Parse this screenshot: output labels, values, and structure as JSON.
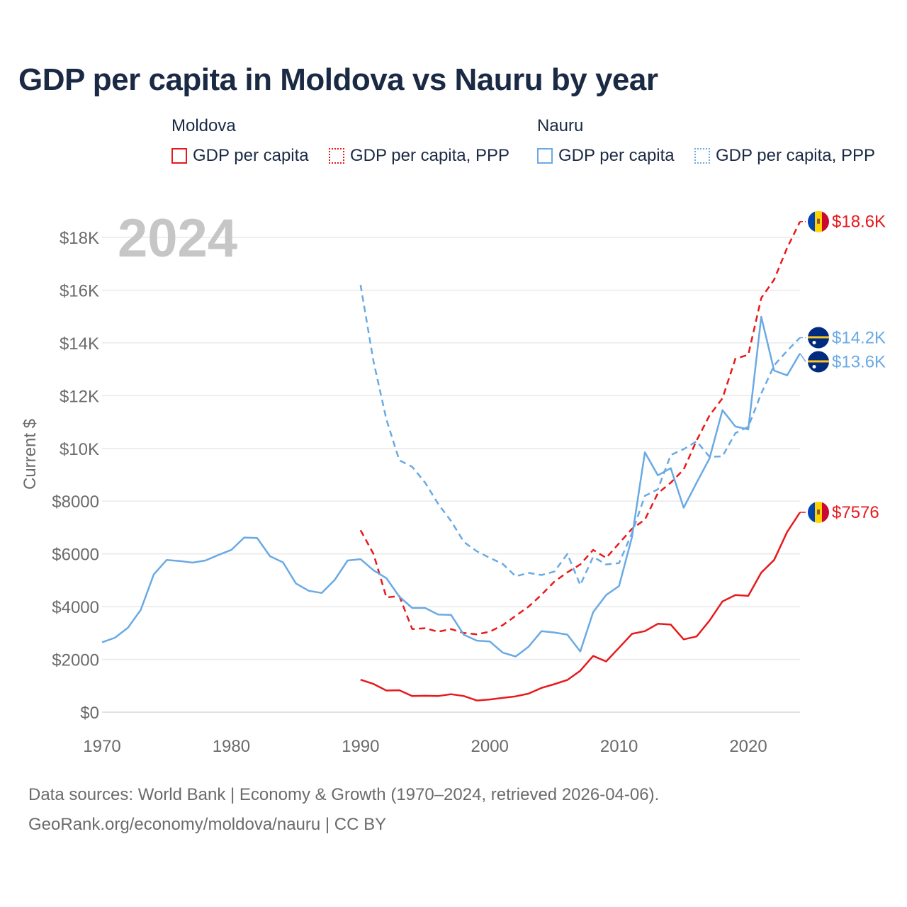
{
  "title": "GDP per capita in Moldova vs Nauru by year",
  "legend": {
    "groups": [
      {
        "name": "Moldova",
        "items": [
          "GDP per capita",
          "GDP per capita, PPP"
        ]
      },
      {
        "name": "Nauru",
        "items": [
          "GDP per capita",
          "GDP per capita, PPP"
        ]
      }
    ]
  },
  "year_watermark": "2024",
  "source": {
    "line1": "Data sources: World Bank | Economy & Growth (1970–2024, retrieved 2026-04-06).",
    "line2": "GeoRank.org/economy/moldova/nauru | CC BY"
  },
  "colors": {
    "moldova": "#e8191c",
    "nauru": "#6aaae4"
  },
  "chart_data": {
    "type": "line",
    "title": "GDP per capita in Moldova vs Nauru by year",
    "xlabel": "",
    "ylabel": "Current $",
    "xlim": [
      1970,
      2024
    ],
    "ylim": [
      0,
      19000
    ],
    "x_ticks": [
      1970,
      1980,
      1990,
      2000,
      2010,
      2020
    ],
    "y_ticks": [
      {
        "value": 0,
        "label": "$0"
      },
      {
        "value": 2000,
        "label": "$2000"
      },
      {
        "value": 4000,
        "label": "$4000"
      },
      {
        "value": 6000,
        "label": "$6000"
      },
      {
        "value": 8000,
        "label": "$8000"
      },
      {
        "value": 10000,
        "label": "$10K"
      },
      {
        "value": 12000,
        "label": "$12K"
      },
      {
        "value": 14000,
        "label": "$14K"
      },
      {
        "value": 16000,
        "label": "$16K"
      },
      {
        "value": 18000,
        "label": "$18K"
      }
    ],
    "grid": true,
    "series": [
      {
        "name": "Moldova GDP per capita",
        "country": "moldova",
        "style": "solid",
        "end_label": "$7576",
        "x": [
          1990,
          1991,
          1992,
          1993,
          1994,
          1995,
          1996,
          1997,
          1998,
          1999,
          2000,
          2001,
          2002,
          2003,
          2004,
          2005,
          2006,
          2007,
          2008,
          2009,
          2010,
          2011,
          2012,
          2013,
          2014,
          2015,
          2016,
          2017,
          2018,
          2019,
          2020,
          2021,
          2022,
          2023,
          2024
        ],
        "y": [
          1230,
          1070,
          820,
          830,
          610,
          620,
          610,
          680,
          610,
          440,
          480,
          540,
          600,
          700,
          920,
          1060,
          1220,
          1570,
          2130,
          1920,
          2440,
          2970,
          3070,
          3350,
          3320,
          2760,
          2870,
          3470,
          4200,
          4440,
          4410,
          5290,
          5770,
          6830,
          7576
        ]
      },
      {
        "name": "Moldova GDP per capita, PPP",
        "country": "moldova",
        "style": "dashed",
        "end_label": "$18.6K",
        "x": [
          1990,
          1991,
          1992,
          1993,
          1994,
          1995,
          1996,
          1997,
          1998,
          1999,
          2000,
          2001,
          2002,
          2003,
          2004,
          2005,
          2006,
          2007,
          2008,
          2009,
          2010,
          2011,
          2012,
          2013,
          2014,
          2015,
          2016,
          2017,
          2018,
          2019,
          2020,
          2021,
          2022,
          2023,
          2024
        ],
        "y": [
          6900,
          6000,
          4350,
          4400,
          3150,
          3180,
          3050,
          3150,
          3000,
          2950,
          3050,
          3300,
          3650,
          4000,
          4450,
          4950,
          5300,
          5600,
          6150,
          5850,
          6400,
          6950,
          7300,
          8300,
          8700,
          9200,
          10300,
          11250,
          11900,
          13400,
          13550,
          15700,
          16400,
          17600,
          18600
        ]
      },
      {
        "name": "Nauru GDP per capita",
        "country": "nauru",
        "style": "solid",
        "end_label": "$13.6K",
        "x": [
          1970,
          1971,
          1972,
          1973,
          1974,
          1975,
          1976,
          1977,
          1978,
          1979,
          1980,
          1981,
          1982,
          1983,
          1984,
          1985,
          1986,
          1987,
          1988,
          1989,
          1990,
          1991,
          1992,
          1993,
          1994,
          1995,
          1996,
          1997,
          1998,
          1999,
          2000,
          2001,
          2002,
          2003,
          2004,
          2005,
          2006,
          2007,
          2008,
          2009,
          2010,
          2011,
          2012,
          2013,
          2014,
          2015,
          2016,
          2017,
          2018,
          2019,
          2020,
          2021,
          2022,
          2023,
          2024
        ],
        "y": [
          2650,
          2820,
          3200,
          3880,
          5220,
          5770,
          5730,
          5670,
          5750,
          5960,
          6150,
          6620,
          6600,
          5910,
          5680,
          4880,
          4600,
          4520,
          5010,
          5750,
          5800,
          5380,
          5080,
          4380,
          3950,
          3950,
          3700,
          3690,
          2930,
          2710,
          2680,
          2260,
          2110,
          2480,
          3070,
          3020,
          2940,
          2300,
          3790,
          4440,
          4780,
          6640,
          9850,
          8980,
          9250,
          7750,
          8700,
          9620,
          11450,
          10830,
          10720,
          14990,
          12950,
          12770,
          13600
        ]
      },
      {
        "name": "Nauru GDP per capita, PPP",
        "country": "nauru",
        "style": "dashed",
        "end_label": "$14.2K",
        "x": [
          1990,
          1991,
          1992,
          1993,
          1994,
          1995,
          1996,
          1997,
          1998,
          1999,
          2000,
          2001,
          2002,
          2003,
          2004,
          2005,
          2006,
          2007,
          2008,
          2009,
          2010,
          2011,
          2012,
          2013,
          2014,
          2015,
          2016,
          2017,
          2018,
          2019,
          2020,
          2021,
          2022,
          2023,
          2024
        ],
        "y": [
          16200,
          13300,
          11100,
          9550,
          9300,
          8700,
          7900,
          7250,
          6450,
          6100,
          5850,
          5620,
          5150,
          5280,
          5200,
          5330,
          6000,
          4820,
          5890,
          5600,
          5650,
          6790,
          8200,
          8450,
          9750,
          9970,
          10270,
          9680,
          9700,
          10580,
          10820,
          12080,
          13150,
          13700,
          14200
        ]
      }
    ]
  }
}
